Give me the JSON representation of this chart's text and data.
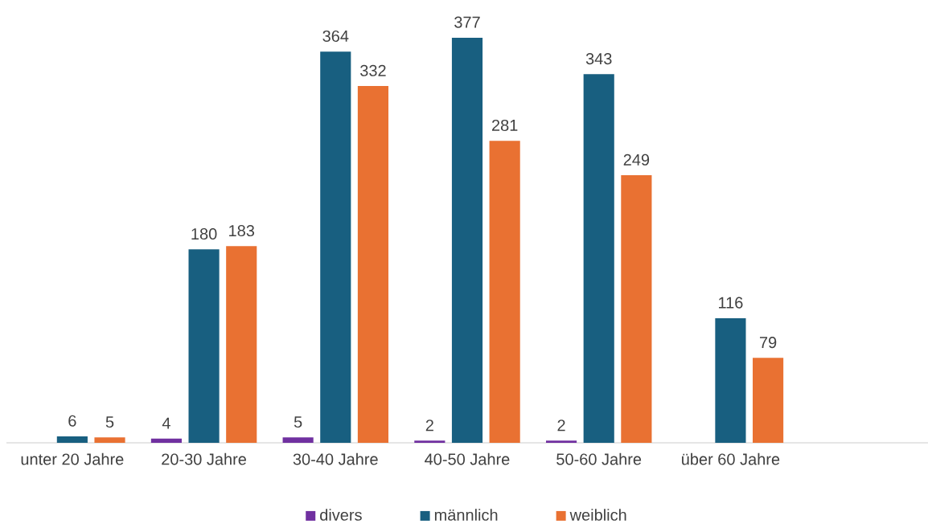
{
  "chart_data": {
    "type": "bar",
    "categories": [
      "unter 20 Jahre",
      "20-30 Jahre",
      "30-40 Jahre",
      "40-50 Jahre",
      "50-60 Jahre",
      "über 60 Jahre",
      null
    ],
    "series": [
      {
        "name": "divers",
        "color": "#7030a0",
        "values": [
          null,
          4,
          5,
          2,
          2,
          null,
          null
        ]
      },
      {
        "name": "männlich",
        "color": "#185f80",
        "values": [
          6,
          180,
          364,
          377,
          343,
          116,
          null
        ]
      },
      {
        "name": "weiblich",
        "color": "#e97132",
        "values": [
          5,
          183,
          332,
          281,
          249,
          79,
          null
        ]
      }
    ],
    "data_labels": true,
    "legend": "bottom"
  }
}
